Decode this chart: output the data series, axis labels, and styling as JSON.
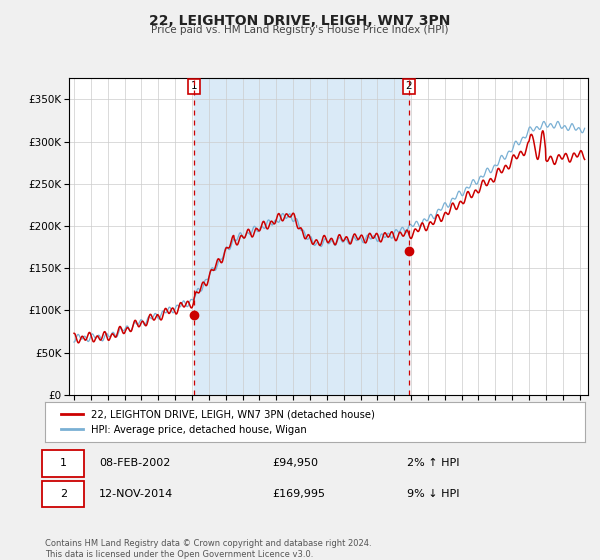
{
  "title": "22, LEIGHTON DRIVE, LEIGH, WN7 3PN",
  "subtitle": "Price paid vs. HM Land Registry's House Price Index (HPI)",
  "legend_line1": "22, LEIGHTON DRIVE, LEIGH, WN7 3PN (detached house)",
  "legend_line2": "HPI: Average price, detached house, Wigan",
  "transaction1_label": "1",
  "transaction1_date": "08-FEB-2002",
  "transaction1_price": "£94,950",
  "transaction1_hpi": "2% ↑ HPI",
  "transaction2_label": "2",
  "transaction2_date": "12-NOV-2014",
  "transaction2_price": "£169,995",
  "transaction2_hpi": "9% ↓ HPI",
  "footnote": "Contains HM Land Registry data © Crown copyright and database right 2024.\nThis data is licensed under the Open Government Licence v3.0.",
  "red_line_color": "#cc0000",
  "blue_line_color": "#7ab0d4",
  "plot_bg": "#ffffff",
  "shade_bg": "#daeaf7",
  "grid_color": "#cccccc",
  "dashed_color": "#cc0000",
  "fig_bg": "#f0f0f0",
  "ylim": [
    0,
    375000
  ],
  "yticks": [
    0,
    50000,
    100000,
    150000,
    200000,
    250000,
    300000,
    350000
  ],
  "xlim_start": 1994.7,
  "xlim_end": 2025.5,
  "marker1_x": 2002.12,
  "marker1_y": 94950,
  "marker2_x": 2014.87,
  "marker2_y": 169995,
  "vline1_x": 2002.12,
  "vline2_x": 2014.87
}
